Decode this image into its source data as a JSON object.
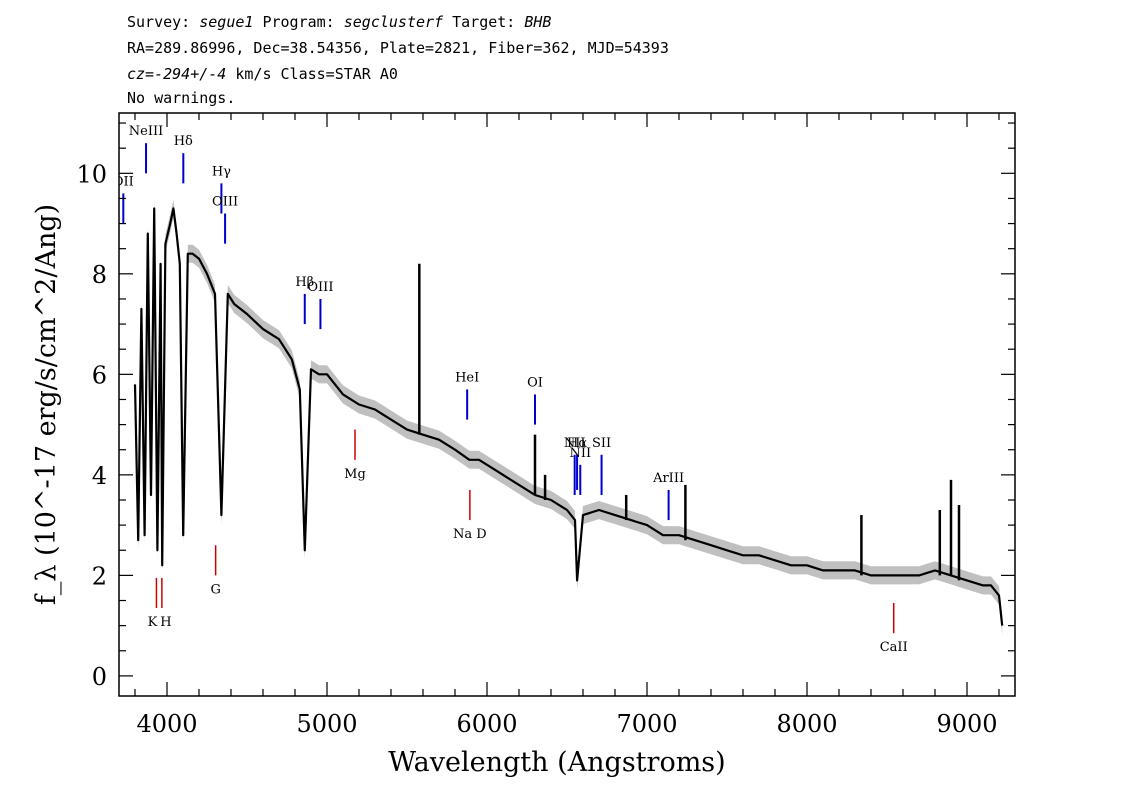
{
  "header": {
    "survey_label": "Survey:",
    "survey": "segue1",
    "program_label": "Program:",
    "program": "segclusterf",
    "target_label": "Target:",
    "target": "BHB",
    "line2": "RA=289.86996, Dec=38.54356, Plate=2821, Fiber=362, MJD=54393",
    "cz_value": "cz=-294+/-4",
    "cz_rest": " km/s Class=STAR A0",
    "warnings": "No warnings."
  },
  "chart_data": {
    "type": "line",
    "xlabel": "Wavelength (Angstroms)",
    "ylabel": "f_λ (10^-17 erg/s/cm^2/Ang)",
    "xlim": [
      3700,
      9300
    ],
    "ylim": [
      -0.4,
      11.2
    ],
    "x_ticks": [
      "4000",
      "5000",
      "6000",
      "7000",
      "8000",
      "9000"
    ],
    "y_ticks": [
      "0",
      "2",
      "4",
      "6",
      "8",
      "10"
    ],
    "series": [
      {
        "x": [
          3800,
          3820,
          3840,
          3860,
          3880,
          3900,
          3920,
          3940,
          3960,
          3970,
          3990,
          4020,
          4040,
          4060,
          4080,
          4101,
          4130,
          4160,
          4200,
          4250,
          4300,
          4340,
          4380,
          4420,
          4500,
          4600,
          4700,
          4780,
          4830,
          4861,
          4900,
          4950,
          5000,
          5100,
          5200,
          5300,
          5400,
          5500,
          5600,
          5700,
          5800,
          5890,
          5950,
          6050,
          6150,
          6250,
          6300,
          6400,
          6500,
          6550,
          6563,
          6600,
          6700,
          6800,
          6900,
          7000,
          7100,
          7200,
          7300,
          7400,
          7500,
          7600,
          7700,
          7800,
          7900,
          8000,
          8100,
          8200,
          8300,
          8400,
          8500,
          8600,
          8700,
          8800,
          8900,
          9000,
          9100,
          9150,
          9200,
          9220
        ],
        "y": [
          5.8,
          2.7,
          7.3,
          2.8,
          8.8,
          3.6,
          9.3,
          2.5,
          8.2,
          2.2,
          8.6,
          9.0,
          9.3,
          8.8,
          8.2,
          2.8,
          8.4,
          8.4,
          8.3,
          8.0,
          7.6,
          3.2,
          7.6,
          7.4,
          7.2,
          6.9,
          6.7,
          6.3,
          5.7,
          2.5,
          6.1,
          6.0,
          6.0,
          5.6,
          5.4,
          5.3,
          5.1,
          4.9,
          4.8,
          4.7,
          4.5,
          4.3,
          4.3,
          4.1,
          3.9,
          3.7,
          3.6,
          3.5,
          3.3,
          3.1,
          1.9,
          3.2,
          3.3,
          3.2,
          3.1,
          3.0,
          2.8,
          2.8,
          2.7,
          2.6,
          2.5,
          2.4,
          2.4,
          2.3,
          2.2,
          2.2,
          2.1,
          2.1,
          2.1,
          2.0,
          2.0,
          2.0,
          2.0,
          2.1,
          2.0,
          1.9,
          1.8,
          1.8,
          1.6,
          1.0
        ]
      }
    ],
    "emission_lines": [
      {
        "name": "OII",
        "wave": 3727,
        "color": "#0000cc"
      },
      {
        "name": "NeIII",
        "wave": 3869,
        "color": "#0000cc"
      },
      {
        "name": "Hδ",
        "wave": 4102,
        "color": "#0000cc"
      },
      {
        "name": "Hγ",
        "wave": 4340,
        "color": "#0000cc"
      },
      {
        "name": "OIII",
        "wave": 4363,
        "color": "#0000cc"
      },
      {
        "name": "Hβ",
        "wave": 4861,
        "color": "#0000cc"
      },
      {
        "name": "OIII",
        "wave": 4959,
        "color": "#0000cc"
      },
      {
        "name": "HeI",
        "wave": 5876,
        "color": "#0000cc"
      },
      {
        "name": "OI",
        "wave": 6300,
        "color": "#0000cc"
      },
      {
        "name": "NII",
        "wave": 6548,
        "color": "#0000cc"
      },
      {
        "name": "Hα",
        "wave": 6563,
        "color": "#0000cc"
      },
      {
        "name": "NII",
        "wave": 6583,
        "color": "#0000cc"
      },
      {
        "name": "SII",
        "wave": 6716,
        "color": "#0000cc"
      },
      {
        "name": "ArIII",
        "wave": 7135,
        "color": "#0000cc"
      }
    ],
    "absorption_lines": [
      {
        "name": "K",
        "wave": 3934,
        "color": "#cc0000"
      },
      {
        "name": "H",
        "wave": 3968,
        "color": "#cc0000"
      },
      {
        "name": "G",
        "wave": 4304,
        "color": "#cc0000"
      },
      {
        "name": "Mg",
        "wave": 5175,
        "color": "#cc0000"
      },
      {
        "name": "Na D",
        "wave": 5893,
        "color": "#cc0000"
      },
      {
        "name": "CaII",
        "wave": 8542,
        "color": "#cc0000"
      }
    ],
    "colors": {
      "spectrum": "#000000",
      "error_band": "#c0c0c0",
      "emission": "#0000cc",
      "absorption": "#cc0000"
    }
  }
}
